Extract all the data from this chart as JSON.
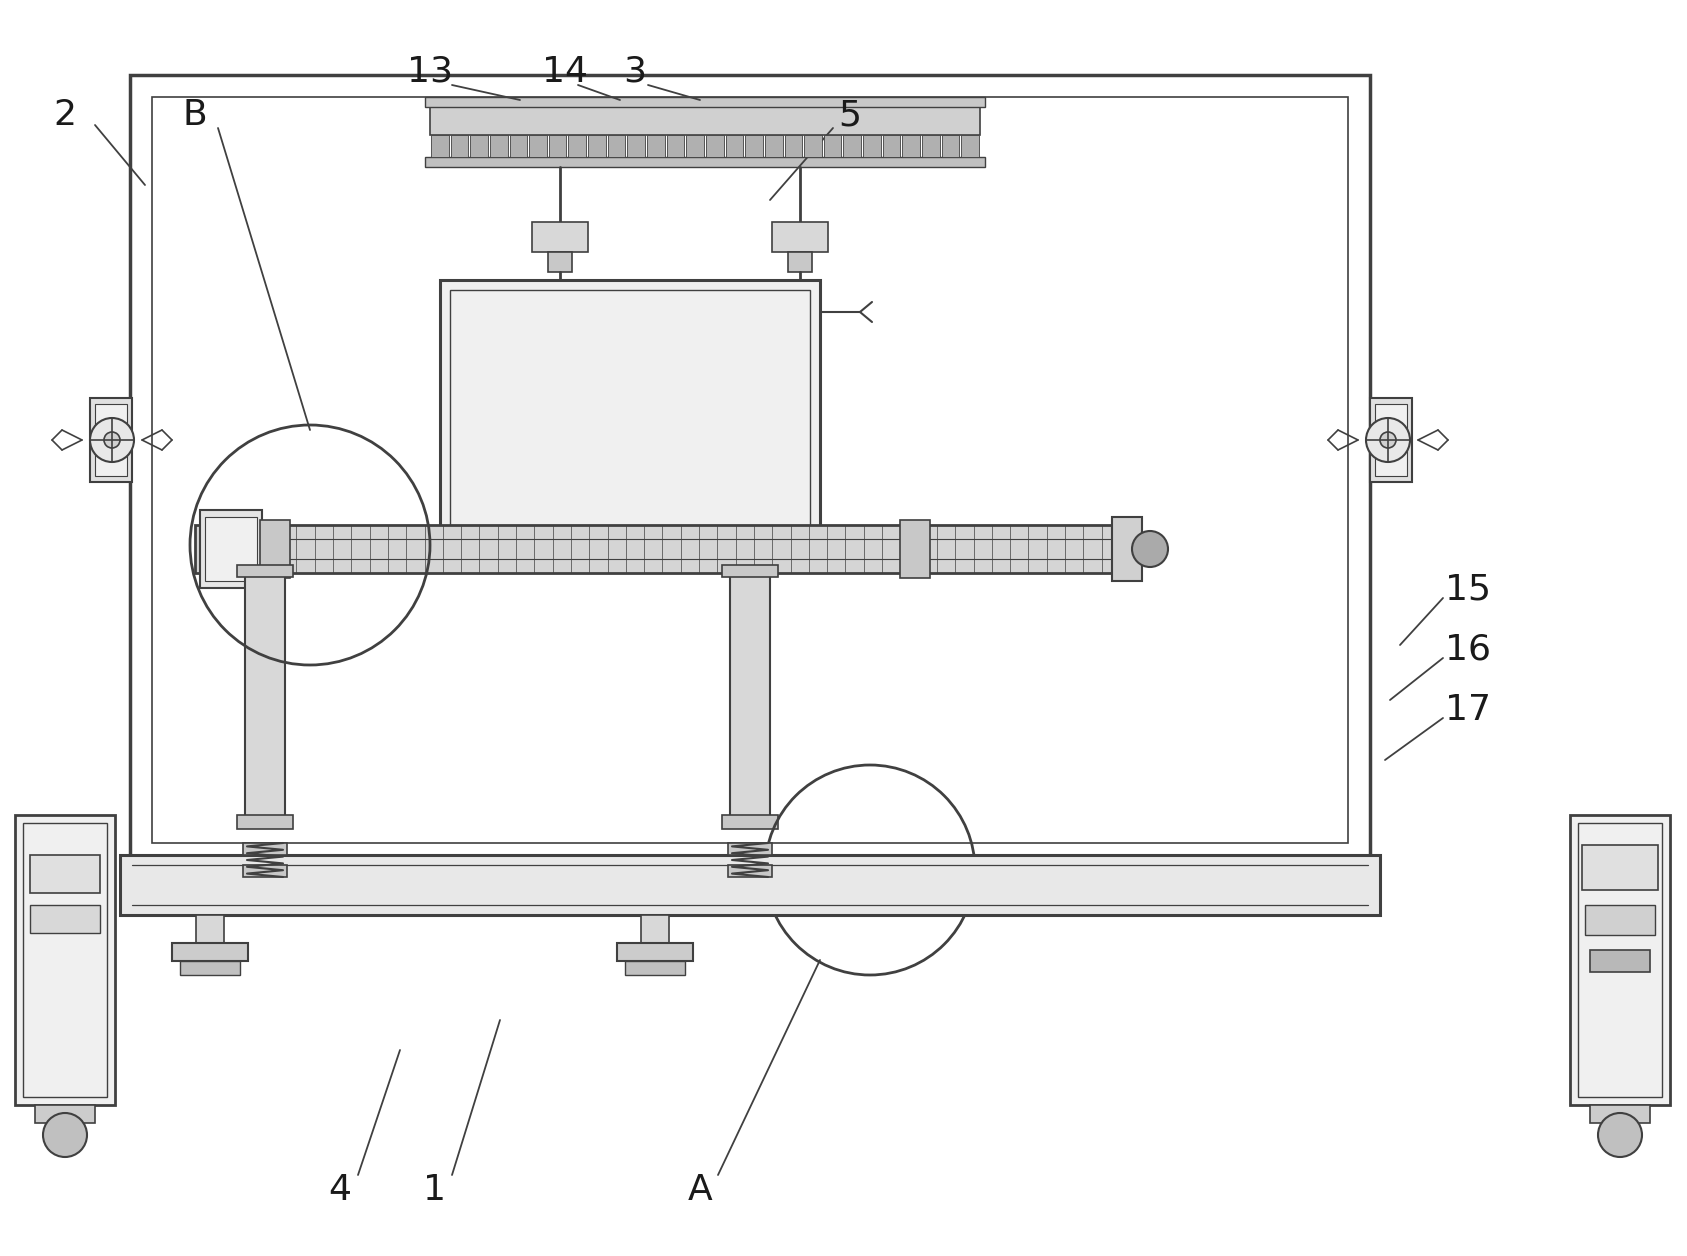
{
  "bg_color": "#ffffff",
  "lc": "#404040",
  "lw": 1.4,
  "figsize": [
    16.87,
    12.56
  ],
  "dpi": 100
}
